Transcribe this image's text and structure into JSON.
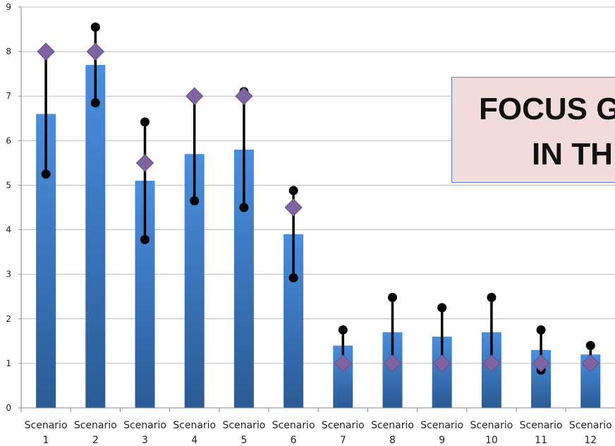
{
  "chart_data": {
    "type": "bar",
    "title": "",
    "xlabel": "",
    "ylabel": "",
    "ylim": [
      0,
      9
    ],
    "yticks": [
      0,
      1,
      2,
      3,
      4,
      5,
      6,
      7,
      8,
      9
    ],
    "grid": true,
    "categories": [
      [
        "Scenario",
        "1"
      ],
      [
        "Scenario",
        "2"
      ],
      [
        "Scenario",
        "3"
      ],
      [
        "Scenario",
        "4"
      ],
      [
        "Scenario",
        "5"
      ],
      [
        "Scenario",
        "6"
      ],
      [
        "Scenario",
        "7"
      ],
      [
        "Scenario",
        "8"
      ],
      [
        "Scenario",
        "9"
      ],
      [
        "Scenario",
        "10"
      ],
      [
        "Scenario",
        "11"
      ],
      [
        "Scenario",
        "12"
      ]
    ],
    "series": [
      {
        "values": [
          6.6,
          7.7,
          5.1,
          5.7,
          5.8,
          3.9,
          1.4,
          1.7,
          1.6,
          1.7,
          1.3,
          1.2
        ],
        "color": "#3f7fd0"
      },
      {
        "marker": "diamond",
        "values": [
          8,
          8,
          5.5,
          7,
          7,
          4.5,
          1,
          1,
          1,
          1,
          1,
          1
        ],
        "color": "#8064a2"
      }
    ],
    "error_range": {
      "low": [
        5.25,
        6.85,
        3.78,
        4.65,
        4.5,
        2.92,
        1.0,
        1.0,
        1.0,
        1.0,
        0.85,
        1.0
      ],
      "high": [
        8.0,
        8.55,
        6.42,
        7.0,
        7.1,
        4.88,
        1.75,
        2.48,
        2.25,
        2.48,
        1.75,
        1.4
      ],
      "color": "#000000"
    }
  },
  "overlay": {
    "line1": "FOCUS G",
    "line2": "IN TH"
  }
}
